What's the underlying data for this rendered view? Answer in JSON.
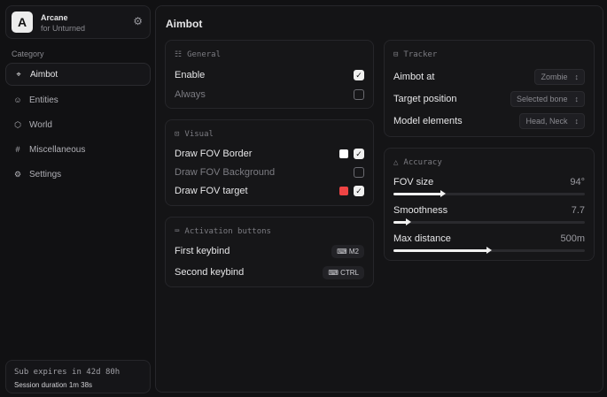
{
  "brand": {
    "logo": "A",
    "name": "Arcane",
    "subtitle": "for Unturned",
    "settings_icon": "gear-icon"
  },
  "sidebar": {
    "category_label": "Category",
    "items": [
      {
        "label": "Aimbot",
        "icon": "crosshair-icon",
        "active": true
      },
      {
        "label": "Entities",
        "icon": "scan-face-icon"
      },
      {
        "label": "World",
        "icon": "globe-icon"
      },
      {
        "label": "Miscellaneous",
        "icon": "grid-icon"
      },
      {
        "label": "Settings",
        "icon": "gear-icon"
      }
    ]
  },
  "subscription": {
    "expires": "Sub expires in 42d 80h",
    "session": "Session duration 1m 38s"
  },
  "page": {
    "title": "Aimbot"
  },
  "general": {
    "title": "General",
    "rows": [
      {
        "label": "Enable",
        "checked": true
      },
      {
        "label": "Always",
        "checked": false
      }
    ]
  },
  "visual": {
    "title": "Visual",
    "rows": [
      {
        "label": "Draw FOV Border",
        "checked": true,
        "color": "#ffffff"
      },
      {
        "label": "Draw FOV Background",
        "checked": false
      },
      {
        "label": "Draw FOV target",
        "checked": true,
        "color": "#ef4444"
      }
    ]
  },
  "activation": {
    "title": "Activation buttons",
    "rows": [
      {
        "label": "First keybind",
        "key": "M2"
      },
      {
        "label": "Second keybind",
        "key": "CTRL"
      }
    ]
  },
  "tracker": {
    "title": "Tracker",
    "rows": [
      {
        "label": "Aimbot at",
        "value": "Zombie"
      },
      {
        "label": "Target position",
        "value": "Selected bone"
      },
      {
        "label": "Model elements",
        "value": "Head, Neck"
      }
    ]
  },
  "accuracy": {
    "title": "Accuracy",
    "sliders": [
      {
        "label": "FOV size",
        "value": "94°",
        "fraction": 0.26
      },
      {
        "label": "Smoothness",
        "value": "7.7",
        "fraction": 0.08
      },
      {
        "label": "Max distance",
        "value": "500m",
        "fraction": 0.5
      }
    ]
  }
}
